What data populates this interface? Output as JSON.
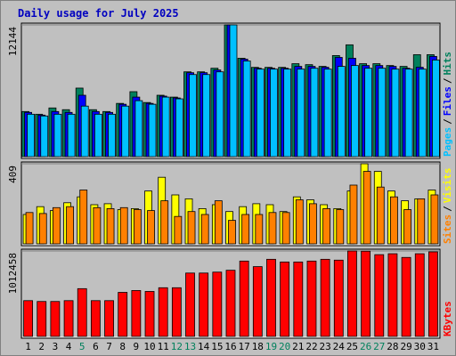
{
  "chart_data": [
    {
      "type": "bar",
      "title": "Daily usage for July 2025",
      "legend_separator": "/",
      "series": [
        {
          "name": "Hits",
          "color": "#00805C",
          "values": [
            4160,
            3910,
            4490,
            4330,
            6320,
            4330,
            4160,
            4910,
            5990,
            4990,
            5660,
            5490,
            7820,
            7820,
            8150,
            12144,
            9070,
            8230,
            8230,
            8230,
            8570,
            8480,
            8320,
            9320,
            10310,
            8570,
            8570,
            8400,
            8320,
            9400,
            9400
          ]
        },
        {
          "name": "Files",
          "color": "#0000FF",
          "values": [
            4080,
            3830,
            4160,
            4080,
            5660,
            4160,
            4080,
            4830,
            5490,
            4910,
            5580,
            5410,
            7740,
            7740,
            7990,
            12144,
            8990,
            8150,
            8150,
            8150,
            8320,
            8320,
            8240,
            9150,
            9070,
            8400,
            8400,
            8320,
            8150,
            8240,
            9240
          ]
        },
        {
          "name": "Pages",
          "color": "#00C0FF",
          "values": [
            3910,
            3750,
            3910,
            3910,
            4660,
            3910,
            3910,
            4660,
            5160,
            4830,
            5490,
            5330,
            7570,
            7570,
            7820,
            12144,
            8820,
            8070,
            8070,
            8070,
            8070,
            8150,
            8070,
            8320,
            8400,
            8150,
            8150,
            8070,
            8070,
            8070,
            8910
          ]
        }
      ],
      "ylim": [
        0,
        12144
      ],
      "yticks": [
        12144
      ],
      "grid": true
    },
    {
      "type": "bar",
      "legend_separator": "/",
      "series": [
        {
          "name": "Visits",
          "color": "#FFFF00",
          "values": [
            150,
            190,
            170,
            210,
            240,
            200,
            205,
            175,
            180,
            270,
            340,
            250,
            230,
            180,
            200,
            165,
            190,
            205,
            200,
            165,
            240,
            225,
            200,
            180,
            270,
            409,
            370,
            270,
            220,
            230,
            275
          ]
        },
        {
          "name": "Sites",
          "color": "#FF8000",
          "values": [
            160,
            155,
            185,
            190,
            275,
            185,
            180,
            185,
            175,
            170,
            220,
            140,
            165,
            150,
            220,
            120,
            150,
            150,
            160,
            160,
            225,
            205,
            180,
            175,
            300,
            370,
            290,
            240,
            175,
            230,
            250
          ]
        }
      ],
      "ylim": [
        0,
        409
      ],
      "yticks": [
        409
      ],
      "grid": true
    },
    {
      "type": "bar",
      "categories": [
        "1",
        "2",
        "3",
        "4",
        "5",
        "6",
        "7",
        "8",
        "9",
        "10",
        "11",
        "12",
        "13",
        "14",
        "15",
        "16",
        "17",
        "18",
        "19",
        "20",
        "21",
        "22",
        "23",
        "24",
        "25",
        "26",
        "27",
        "28",
        "29",
        "30",
        "31"
      ],
      "category_colors": [
        "#000000",
        "#000000",
        "#000000",
        "#000000",
        "#00805C",
        "#000000",
        "#000000",
        "#000000",
        "#000000",
        "#000000",
        "#000000",
        "#00805C",
        "#00805C",
        "#000000",
        "#000000",
        "#000000",
        "#000000",
        "#000000",
        "#00805C",
        "#00805C",
        "#000000",
        "#000000",
        "#000000",
        "#000000",
        "#000000",
        "#00805C",
        "#00805C",
        "#000000",
        "#000000",
        "#000000",
        "#000000"
      ],
      "series": [
        {
          "name": "KBytes",
          "color": "#FF0000",
          "values": [
            424000,
            414000,
            414000,
            424000,
            566000,
            424000,
            424000,
            522000,
            544000,
            533000,
            577000,
            577000,
            751000,
            751000,
            762000,
            784000,
            893000,
            827000,
            914000,
            882000,
            882000,
            893000,
            914000,
            904000,
            1012458,
            1010000,
            969000,
            980000,
            936000,
            980000,
            1002000
          ]
        }
      ],
      "ylim": [
        0,
        1012458
      ],
      "yticks": [
        1012458
      ],
      "grid": true
    }
  ]
}
